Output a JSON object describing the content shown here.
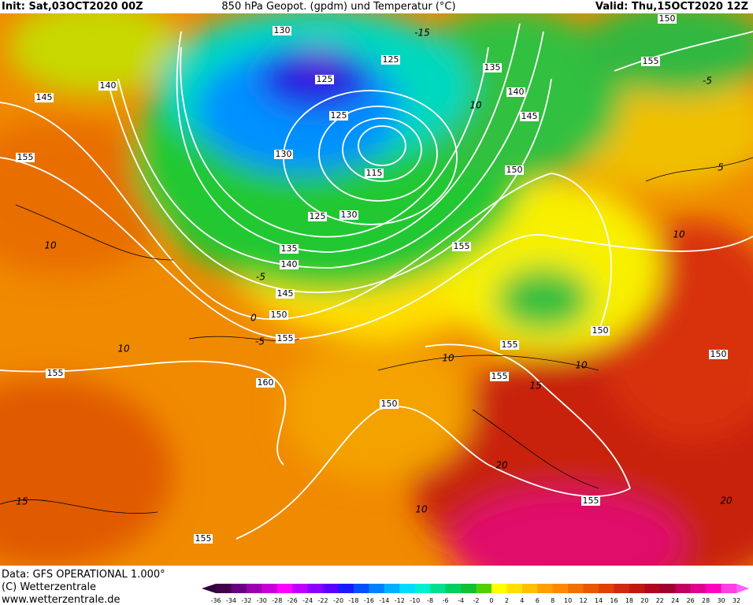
{
  "header": {
    "init": "Init: Sat,03OCT2020 00Z",
    "title": "850 hPa Geopot. (gpdm) und Temperatur (°C)",
    "valid": "Valid: Thu,15OCT2020 12Z"
  },
  "footer": {
    "data": "Data: GFS OPERATIONAL 1.000°",
    "copyright": "(C) Wetterzentrale",
    "url": "www.wetterzentrale.de"
  },
  "colorbar": {
    "ticks": [
      -36,
      -34,
      -32,
      -30,
      -28,
      -26,
      -24,
      -22,
      -20,
      -18,
      -16,
      -14,
      -12,
      -10,
      -8,
      -6,
      -4,
      -2,
      0,
      2,
      4,
      6,
      8,
      10,
      12,
      14,
      16,
      18,
      20,
      22,
      24,
      26,
      28,
      30,
      32
    ]
  },
  "geopotential_labels": [
    130,
    125,
    135,
    140,
    145,
    155,
    125,
    125,
    140,
    145,
    130,
    115,
    150,
    125,
    130,
    155,
    135,
    140,
    145,
    150,
    155,
    155,
    150,
    150,
    155,
    160,
    155,
    150,
    155,
    155,
    150,
    155
  ],
  "temperature_labels": [
    -15,
    10,
    -5,
    5,
    10,
    10,
    -5,
    0,
    -5,
    10,
    10,
    15,
    10,
    20,
    15,
    10,
    20
  ]
}
